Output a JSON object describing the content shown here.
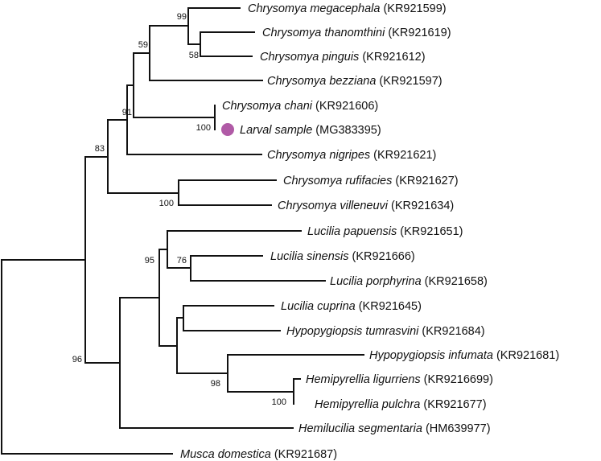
{
  "tree": {
    "marker_color": "#b05aa6",
    "taxa": [
      {
        "id": "t1",
        "genus_species": "Chrysomya megacephala",
        "accession": "(KR921599)"
      },
      {
        "id": "t2",
        "genus_species": "Chrysomya thanomthini",
        "accession": "(KR921619)"
      },
      {
        "id": "t3",
        "genus_species": "Chrysomya pinguis",
        "accession": "(KR921612)"
      },
      {
        "id": "t4",
        "genus_species": "Chrysomya bezziana",
        "accession": "(KR921597)"
      },
      {
        "id": "t5",
        "genus_species": "Chrysomya chani",
        "accession": "(KR921606)"
      },
      {
        "id": "t6",
        "genus_species": "Larval sample",
        "accession": "(MG383395)",
        "italic": false,
        "highlight": true
      },
      {
        "id": "t7",
        "genus_species": "Chrysomya nigripes",
        "accession": "(KR921621)"
      },
      {
        "id": "t8",
        "genus_species": "Chrysomya rufifacies",
        "accession": "(KR921627)"
      },
      {
        "id": "t9",
        "genus_species": "Chrysomya villeneuvi",
        "accession": "(KR921634)"
      },
      {
        "id": "t10",
        "genus_species": "Lucilia papuensis",
        "accession": "(KR921651)"
      },
      {
        "id": "t11",
        "genus_species": "Lucilia sinensis",
        "accession": "(KR921666)"
      },
      {
        "id": "t12",
        "genus_species": "Lucilia porphyrina",
        "accession": "(KR921658)"
      },
      {
        "id": "t13",
        "genus_species": "Lucilia cuprina",
        "accession": "(KR921645)"
      },
      {
        "id": "t14",
        "genus_species": "Hypopygiopsis tumrasvini",
        "accession": "(KR921684)"
      },
      {
        "id": "t15",
        "genus_species": "Hypopygiopsis infumata",
        "accession": "(KR921681)"
      },
      {
        "id": "t16",
        "genus_species": "Hemipyrellia ligurriens",
        "accession": "(KR9216699)"
      },
      {
        "id": "t17",
        "genus_species": "Hemipyrellia pulchra",
        "accession": "(KR921677)"
      },
      {
        "id": "t18",
        "genus_species": "Hemilucilia segmentaria",
        "accession": "(HM639977)"
      },
      {
        "id": "t19",
        "genus_species": "Musca domestica",
        "accession": "(KR921687)"
      }
    ],
    "bootstrap": [
      {
        "node": "n_meg_thp",
        "value": "99"
      },
      {
        "node": "n_than_ping",
        "value": "58"
      },
      {
        "node": "n_bezz",
        "value": "59"
      },
      {
        "node": "n_chani_larval",
        "value": "100"
      },
      {
        "node": "n_chry_core",
        "value": "91"
      },
      {
        "node": "n_rufi_ville",
        "value": "100"
      },
      {
        "node": "n_chrysomya",
        "value": "83"
      },
      {
        "node": "n_lucilia_hemip",
        "value": "95"
      },
      {
        "node": "n_sin_por",
        "value": "76"
      },
      {
        "node": "n_infumata_hemip",
        "value": "98"
      },
      {
        "node": "n_hemipyrellia",
        "value": "100"
      },
      {
        "node": "n_ingroup",
        "value": "96"
      }
    ]
  }
}
